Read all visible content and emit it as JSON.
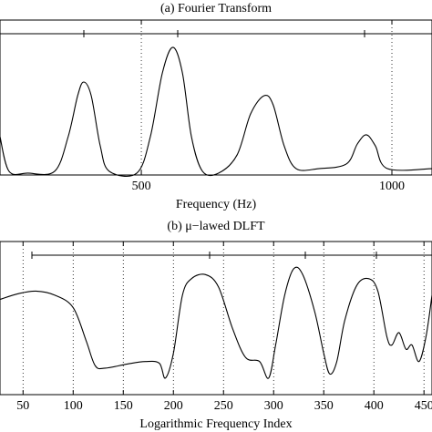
{
  "chart_data": [
    {
      "type": "line",
      "title": "(a) Fourier Transform",
      "x_label": "Frequency (Hz)",
      "x": [
        218,
        236,
        273,
        327,
        354,
        373,
        385,
        400,
        418,
        436,
        491,
        518,
        542,
        563,
        582,
        600,
        622,
        654,
        691,
        718,
        745,
        763,
        785,
        809,
        854,
        909,
        931,
        949,
        967,
        991,
        1080
      ],
      "values": [
        0.247,
        0.024,
        0.012,
        0.024,
        0.247,
        0.512,
        0.6,
        0.512,
        0.188,
        0.024,
        0.012,
        0.247,
        0.659,
        0.824,
        0.659,
        0.247,
        0.024,
        0.012,
        0.129,
        0.394,
        0.512,
        0.453,
        0.188,
        0.041,
        0.041,
        0.071,
        0.2,
        0.259,
        0.188,
        0.041,
        0.041
      ],
      "color": "#000000",
      "xlim": [
        218,
        1080
      ],
      "xticks": [
        500,
        1000
      ],
      "ylim": [
        0,
        1
      ],
      "grid": true
    },
    {
      "type": "line",
      "title": "(b) μ−lawed DLFT",
      "x_label": "Logarithmic Frequency Index",
      "x": [
        27,
        45,
        63,
        82,
        100,
        113,
        122,
        132,
        154,
        172,
        186,
        192,
        200,
        209,
        218,
        232,
        245,
        259,
        272,
        286,
        295,
        302,
        311,
        320,
        329,
        341,
        350,
        356,
        363,
        371,
        383,
        395,
        404,
        413,
        418,
        425,
        432,
        438,
        445,
        452,
        458
      ],
      "values": [
        0.622,
        0.659,
        0.676,
        0.649,
        0.568,
        0.351,
        0.189,
        0.173,
        0.2,
        0.216,
        0.205,
        0.108,
        0.27,
        0.649,
        0.757,
        0.784,
        0.703,
        0.432,
        0.243,
        0.216,
        0.108,
        0.324,
        0.649,
        0.822,
        0.784,
        0.541,
        0.27,
        0.135,
        0.216,
        0.486,
        0.714,
        0.757,
        0.676,
        0.378,
        0.324,
        0.405,
        0.297,
        0.324,
        0.216,
        0.378,
        0.649
      ],
      "color": "#000000",
      "xlim": [
        27,
        458
      ],
      "xticks": [
        50,
        100,
        150,
        200,
        250,
        300,
        350,
        400,
        450
      ],
      "ylim": [
        0,
        1
      ],
      "grid": true
    }
  ]
}
